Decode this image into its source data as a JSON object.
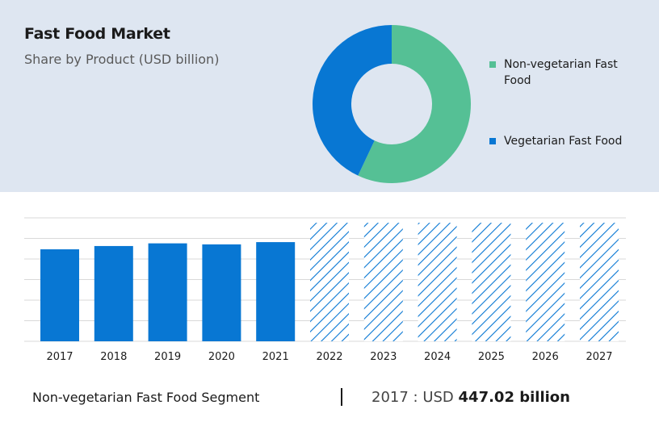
{
  "title": "Fast Food Market",
  "subtitle": "Share by Product (USD billion)",
  "colors": {
    "non_veg": "#55c095",
    "veg": "#0877d3",
    "panel": "#dee6f1"
  },
  "chart_data": [
    {
      "type": "pie",
      "variant": "donut",
      "slices": [
        {
          "name": "Non-vegetarian Fast Food",
          "share": 0.57,
          "color": "#55c095"
        },
        {
          "name": "Vegetarian Fast Food",
          "share": 0.43,
          "color": "#0877d3"
        }
      ],
      "legend_position": "right"
    },
    {
      "type": "bar",
      "categories": [
        "2017",
        "2018",
        "2019",
        "2020",
        "2021",
        "2022",
        "2023",
        "2024",
        "2025",
        "2026",
        "2027"
      ],
      "values": [
        447.02,
        463,
        476,
        471,
        482,
        null,
        null,
        null,
        null,
        null,
        null
      ],
      "forecast_categories": [
        "2022",
        "2023",
        "2024",
        "2025",
        "2026",
        "2027"
      ],
      "forecast_style": "hatched",
      "ylim": [
        0,
        600
      ],
      "grid": true,
      "color": "#0877d3"
    }
  ],
  "footer": {
    "segment_label": "Non-vegetarian Fast Food Segment",
    "year_prefix": "2017 : USD",
    "value": "447.02 billion"
  }
}
